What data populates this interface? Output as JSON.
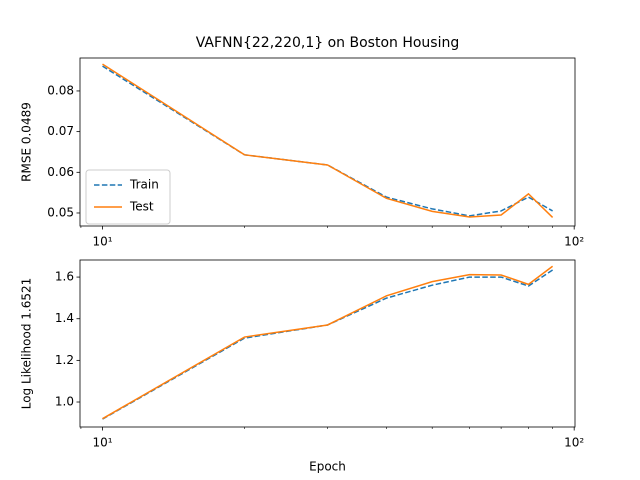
{
  "chart_data": [
    {
      "type": "line",
      "title": "VAFNN{22,220,1} on Boston Housing",
      "ylabel": "RMSE 0.0489",
      "x": [
        10,
        20,
        30,
        40,
        50,
        60,
        70,
        80,
        90
      ],
      "xscale": "log",
      "xlim": [
        8.96,
        100.4
      ],
      "xticks": [
        {
          "value": 10,
          "label": "10¹"
        },
        {
          "value": 100,
          "label": "10²"
        }
      ],
      "ylim": [
        0.0468,
        0.0881
      ],
      "yticks": [
        0.05,
        0.06,
        0.07,
        0.08
      ],
      "legend": "lower left",
      "series": [
        {
          "name": "Train",
          "color": "#1f77b4",
          "linestyle": "dashed",
          "values": [
            0.0861,
            0.0643,
            0.0618,
            0.0539,
            0.051,
            0.0493,
            0.0505,
            0.0539,
            0.0505
          ]
        },
        {
          "name": "Test",
          "color": "#ff7f0e",
          "linestyle": "solid",
          "values": [
            0.0866,
            0.0643,
            0.0618,
            0.0536,
            0.0504,
            0.049,
            0.0495,
            0.0547,
            0.0489
          ]
        }
      ]
    },
    {
      "type": "line",
      "ylabel": "Log Likelihood 1.6521",
      "xlabel": "Epoch",
      "x": [
        10,
        20,
        30,
        40,
        50,
        60,
        70,
        80,
        90
      ],
      "xscale": "log",
      "xlim": [
        8.96,
        100.4
      ],
      "xticks": [
        {
          "value": 10,
          "label": "10¹"
        },
        {
          "value": 100,
          "label": "10²"
        }
      ],
      "ylim": [
        0.88,
        1.682
      ],
      "yticks": [
        {
          "value": 1.0,
          "label": "1.0"
        },
        1.2,
        1.4,
        1.6
      ],
      "series": [
        {
          "name": "Train",
          "color": "#1f77b4",
          "linestyle": "dashed",
          "values": [
            0.918,
            1.307,
            1.37,
            1.499,
            1.561,
            1.6,
            1.6,
            1.557,
            1.634
          ]
        },
        {
          "name": "Test",
          "color": "#ff7f0e",
          "linestyle": "solid",
          "values": [
            0.92,
            1.312,
            1.37,
            1.51,
            1.578,
            1.612,
            1.61,
            1.565,
            1.652
          ]
        }
      ]
    }
  ]
}
